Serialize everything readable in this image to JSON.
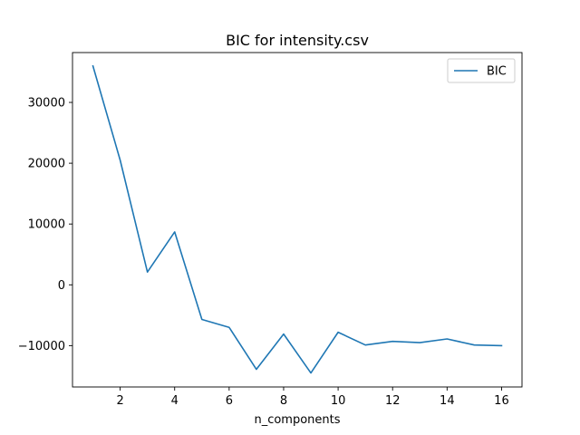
{
  "chart_data": {
    "type": "line",
    "title": "BIC for intensity.csv",
    "xlabel": "n_components",
    "ylabel": "",
    "x": [
      1,
      2,
      3,
      4,
      5,
      6,
      7,
      8,
      9,
      10,
      11,
      12,
      13,
      14,
      15,
      16
    ],
    "series": [
      {
        "name": "BIC",
        "color": "#1f77b4",
        "values": [
          36000,
          20500,
          2100,
          8700,
          -5700,
          -7000,
          -13900,
          -8100,
          -14500,
          -7800,
          -9900,
          -9300,
          -9500,
          -8900,
          -9900,
          -10000
        ]
      }
    ],
    "xlim": [
      0.25,
      16.75
    ],
    "ylim": [
      -16800,
      38200
    ],
    "xticks": [
      2,
      4,
      6,
      8,
      10,
      12,
      14,
      16
    ],
    "yticks": [
      -10000,
      0,
      10000,
      20000,
      30000
    ],
    "xtick_labels": [
      "2",
      "4",
      "6",
      "8",
      "10",
      "12",
      "14",
      "16"
    ],
    "ytick_labels": [
      "−10000",
      "0",
      "10000",
      "20000",
      "30000"
    ],
    "grid": false,
    "legend_position": "top-right"
  }
}
